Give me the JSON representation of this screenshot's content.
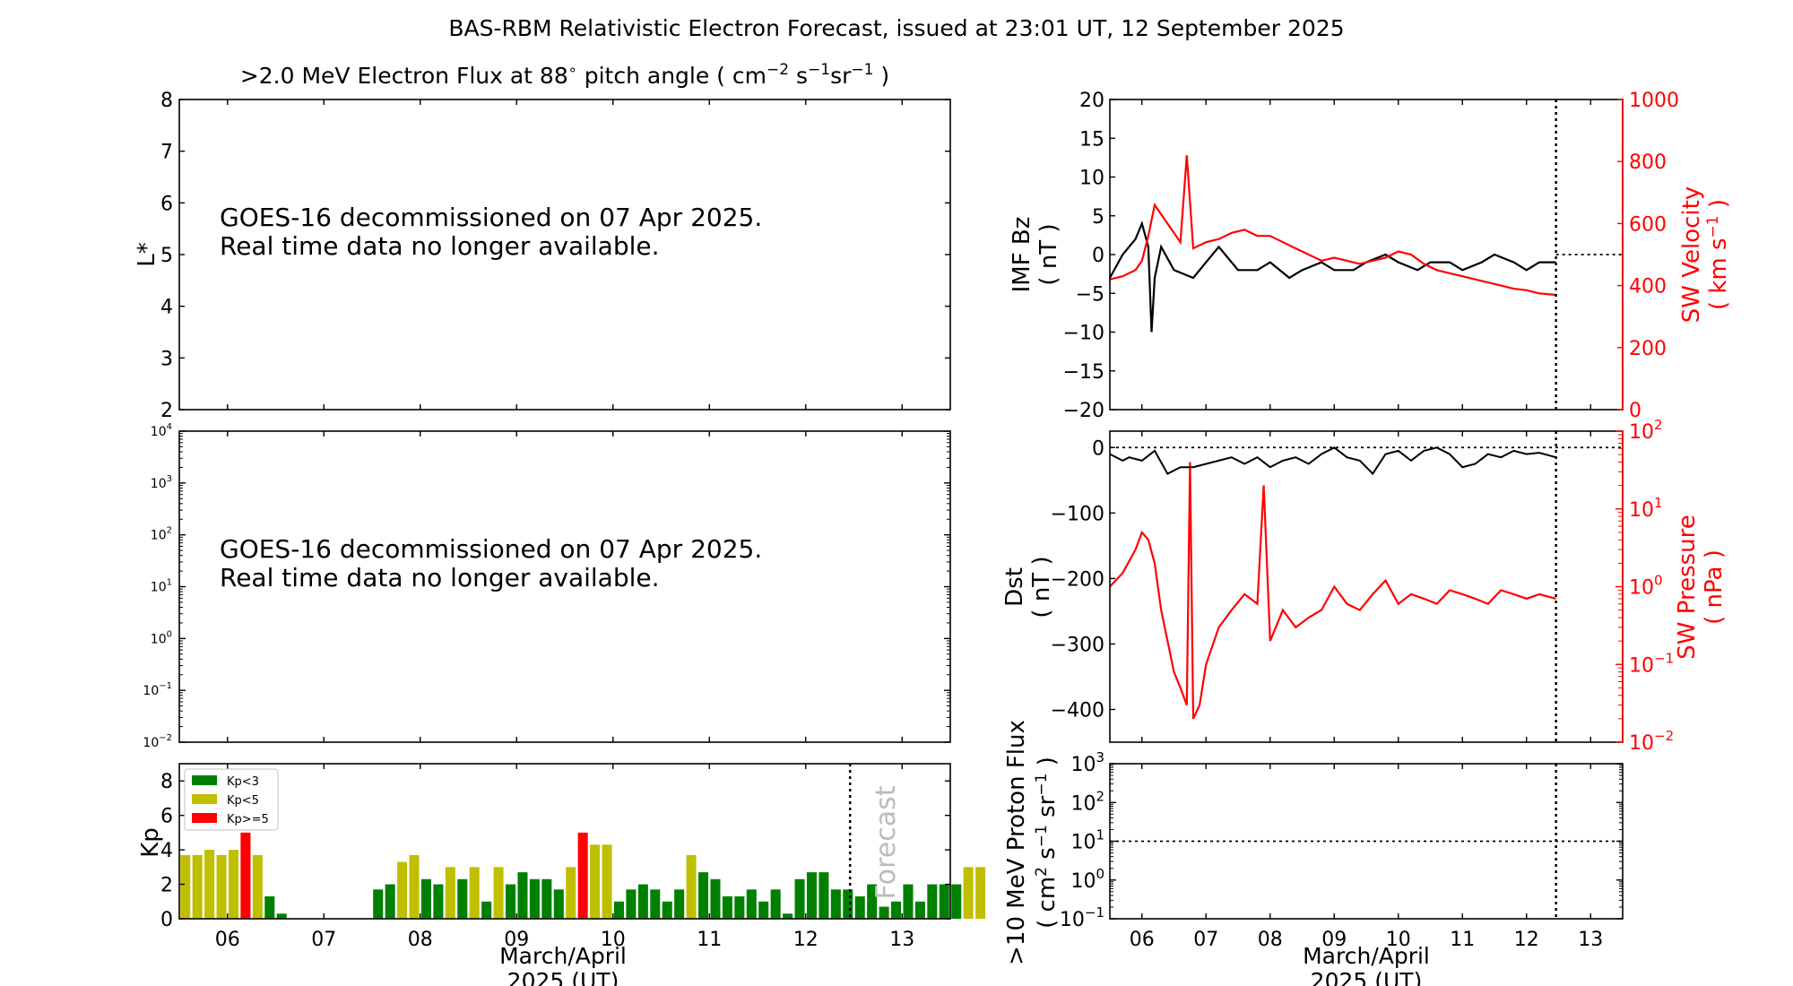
{
  "figure": {
    "suptitle": "BAS-RBM Relativistic Electron Forecast, issued at 23:01 UT, 12 September 2025",
    "flux_title_prefix": ">2.0 MeV Electron Flux at 88",
    "flux_title_units": "pitch angle ( cm",
    "decommission_line1": "GOES-16 decommissioned on 07 Apr 2025.",
    "decommission_line2": "Real time data no longer available.",
    "xlabel_line1": "March/April",
    "xlabel_line2": "2025 (UT)",
    "forecast_label": "Forecast"
  },
  "chart_data": [
    {
      "id": "lstar",
      "type": "line",
      "ylabel": "L*",
      "ylim": [
        2,
        8
      ],
      "yticks": [
        "2",
        "3",
        "4",
        "5",
        "6",
        "7",
        "8"
      ],
      "series": []
    },
    {
      "id": "flux",
      "type": "line",
      "yscale": "log",
      "ylim_exp": [
        -2,
        4
      ],
      "ytick_exponents": [
        "-2",
        "-1",
        "0",
        "1",
        "2",
        "3",
        "4"
      ],
      "series": []
    },
    {
      "id": "kp",
      "type": "bar",
      "ylabel": "Kp",
      "ylim": [
        0,
        9
      ],
      "yticks": [
        "0",
        "2",
        "4",
        "6",
        "8"
      ],
      "xticks": [
        "06",
        "07",
        "08",
        "09",
        "10",
        "11",
        "12",
        "13"
      ],
      "legend": {
        "placement": "upper-left",
        "entries": [
          "Kp<3",
          "Kp<5",
          "Kp>=5"
        ]
      },
      "colors": {
        "low": "#008000",
        "mid": "#bfbf00",
        "high": "#ff0000"
      },
      "forecast_divider_day": 12.46,
      "x_start_day": 5.5,
      "bar_interval_days": 0.125,
      "values": [
        3.7,
        3.7,
        4.0,
        3.7,
        4.0,
        5.0,
        3.7,
        1.3,
        0.3,
        0,
        0,
        0,
        0,
        0,
        0,
        0,
        1.7,
        2.0,
        3.3,
        3.7,
        2.3,
        2.0,
        3.0,
        2.3,
        3.0,
        1.0,
        3.0,
        2.0,
        2.7,
        2.3,
        2.3,
        1.7,
        3.0,
        5.0,
        4.3,
        4.3,
        1.0,
        1.7,
        2.0,
        1.7,
        1.0,
        1.7,
        3.7,
        2.7,
        2.3,
        1.3,
        1.3,
        1.7,
        1.0,
        1.7,
        0.3,
        2.3,
        2.7,
        2.7,
        1.7,
        1.7,
        1.3,
        2.0,
        0.7,
        1.0,
        2.0,
        1.0,
        2.0,
        2.0,
        2.0,
        3.0,
        3.0
      ]
    },
    {
      "id": "imf_sw",
      "type": "line",
      "ylabel_left_line1": "IMF Bz",
      "ylabel_left_line2": "( nT )",
      "ylim_left": [
        -20,
        20
      ],
      "yticks_left": [
        "-20",
        "-15",
        "-10",
        "-5",
        "0",
        "5",
        "10",
        "15",
        "20"
      ],
      "ylabel_right_line1": "SW Velocity",
      "ylabel_right_units": "( km s",
      "ylim_right": [
        0,
        1000
      ],
      "yticks_right": [
        "0",
        "200",
        "400",
        "600",
        "800",
        "1000"
      ],
      "now_marker_day": 12.46,
      "series": [
        {
          "name": "IMF Bz",
          "color": "#000000",
          "x": [
            5.5,
            5.7,
            5.9,
            6.0,
            6.1,
            6.15,
            6.2,
            6.3,
            6.5,
            6.8,
            7.0,
            7.2,
            7.5,
            7.8,
            8.0,
            8.3,
            8.5,
            8.8,
            9.0,
            9.3,
            9.5,
            9.8,
            10.0,
            10.3,
            10.5,
            10.8,
            11.0,
            11.3,
            11.5,
            11.8,
            12.0,
            12.2,
            12.46
          ],
          "y": [
            -3,
            0,
            2,
            4,
            1,
            -10,
            -3,
            1,
            -2,
            -3,
            -1,
            1,
            -2,
            -2,
            -1,
            -3,
            -2,
            -1,
            -2,
            -2,
            -1,
            0,
            -1,
            -2,
            -1,
            -1,
            -2,
            -1,
            0,
            -1,
            -2,
            -1,
            -1
          ]
        },
        {
          "name": "SW Velocity",
          "color": "#ff0000",
          "x": [
            5.5,
            5.7,
            5.9,
            6.0,
            6.1,
            6.2,
            6.4,
            6.6,
            6.7,
            6.8,
            7.0,
            7.2,
            7.4,
            7.6,
            7.8,
            8.0,
            8.2,
            8.4,
            8.6,
            8.8,
            9.0,
            9.2,
            9.4,
            9.6,
            9.8,
            10.0,
            10.2,
            10.4,
            10.6,
            10.8,
            11.0,
            11.2,
            11.4,
            11.6,
            11.8,
            12.0,
            12.2,
            12.46
          ],
          "y": [
            420,
            430,
            450,
            480,
            560,
            660,
            600,
            540,
            820,
            520,
            540,
            550,
            570,
            580,
            560,
            560,
            540,
            520,
            500,
            480,
            490,
            480,
            470,
            480,
            490,
            510,
            500,
            470,
            450,
            440,
            430,
            420,
            410,
            400,
            390,
            385,
            375,
            370
          ]
        }
      ]
    },
    {
      "id": "dst_pressure",
      "type": "line",
      "ylabel_left_line1": "Dst",
      "ylabel_left_line2": "( nT )",
      "ylim_left": [
        -450,
        25
      ],
      "yticks_left": [
        "-400",
        "-300",
        "-200",
        "-100",
        "0"
      ],
      "ylabel_right_line1": "SW Pressure",
      "ylabel_right_line2": "( nPa )",
      "ytick_exponents_right": [
        "-2",
        "-1",
        "0",
        "1",
        "2"
      ],
      "now_marker_day": 12.46,
      "series": [
        {
          "name": "Dst",
          "color": "#000000",
          "x": [
            5.5,
            5.7,
            5.8,
            6.0,
            6.2,
            6.4,
            6.6,
            6.8,
            7.0,
            7.2,
            7.4,
            7.6,
            7.8,
            8.0,
            8.2,
            8.4,
            8.6,
            8.8,
            9.0,
            9.2,
            9.4,
            9.6,
            9.8,
            10.0,
            10.2,
            10.4,
            10.6,
            10.8,
            11.0,
            11.2,
            11.4,
            11.6,
            11.8,
            12.0,
            12.2,
            12.46
          ],
          "y": [
            -10,
            -20,
            -15,
            -20,
            -5,
            -40,
            -30,
            -30,
            -25,
            -20,
            -15,
            -25,
            -15,
            -30,
            -20,
            -15,
            -25,
            -10,
            0,
            -15,
            -20,
            -40,
            -10,
            -5,
            -20,
            -5,
            0,
            -10,
            -30,
            -25,
            -10,
            -15,
            -5,
            -10,
            -8,
            -15
          ]
        },
        {
          "name": "SW Pressure",
          "color": "#ff0000",
          "x": [
            5.5,
            5.7,
            5.9,
            6.0,
            6.1,
            6.2,
            6.3,
            6.5,
            6.6,
            6.7,
            6.75,
            6.8,
            6.9,
            7.0,
            7.2,
            7.4,
            7.6,
            7.8,
            7.9,
            8.0,
            8.2,
            8.4,
            8.6,
            8.8,
            9.0,
            9.2,
            9.4,
            9.6,
            9.8,
            10.0,
            10.2,
            10.4,
            10.6,
            10.8,
            11.0,
            11.2,
            11.4,
            11.6,
            11.8,
            12.0,
            12.2,
            12.46
          ],
          "y": [
            1.0,
            1.5,
            3.0,
            5.0,
            4.0,
            2.0,
            0.5,
            0.08,
            0.05,
            0.03,
            40,
            0.02,
            0.03,
            0.1,
            0.3,
            0.5,
            0.8,
            0.6,
            20,
            0.2,
            0.5,
            0.3,
            0.4,
            0.5,
            1.0,
            0.6,
            0.5,
            0.8,
            1.2,
            0.6,
            0.8,
            0.7,
            0.6,
            0.9,
            0.8,
            0.7,
            0.6,
            0.9,
            0.8,
            0.7,
            0.8,
            0.7
          ]
        }
      ]
    },
    {
      "id": "proton",
      "type": "line",
      "yscale": "log",
      "ylabel_line1": ">10 MeV Proton Flux",
      "ylabel_line2_prefix": "( cm",
      "ytick_exponents": [
        "-1",
        "0",
        "1",
        "2",
        "3"
      ],
      "threshold_exponent": 1,
      "now_marker_day": 12.46,
      "xticks": [
        "06",
        "07",
        "08",
        "09",
        "10",
        "11",
        "12",
        "13"
      ],
      "series": []
    }
  ]
}
